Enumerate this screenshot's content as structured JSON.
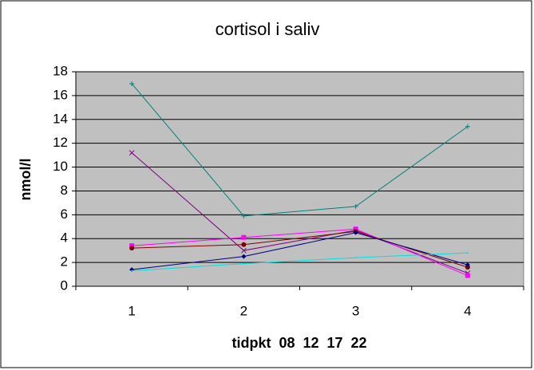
{
  "chart_data": {
    "type": "line",
    "title": "cortisol i saliv",
    "y_label": "nmol/l",
    "x_label": "tidpkt  08  12  17  22",
    "categories": [
      "1",
      "2",
      "3",
      "4"
    ],
    "series": [
      {
        "color": "#008080",
        "marker": "star",
        "values": [
          17.0,
          5.9,
          6.7,
          13.4
        ]
      },
      {
        "color": "#800080",
        "marker": "x",
        "values": [
          11.2,
          3.0,
          4.7,
          1.1
        ]
      },
      {
        "color": "#ff00ff",
        "marker": "square",
        "values": [
          3.4,
          4.1,
          4.8,
          0.9
        ]
      },
      {
        "color": "#800000",
        "marker": "circle",
        "values": [
          3.2,
          3.5,
          4.6,
          1.6
        ]
      },
      {
        "color": "#000080",
        "marker": "diamond",
        "values": [
          1.4,
          2.5,
          4.5,
          1.8
        ]
      },
      {
        "color": "#00e0e0",
        "marker": "none",
        "values": [
          1.3,
          1.9,
          2.4,
          2.8
        ]
      }
    ],
    "ylim": [
      0,
      18
    ],
    "yticks": [
      0,
      2,
      4,
      6,
      8,
      10,
      12,
      14,
      16,
      18
    ],
    "grid": true,
    "plot_background": "#c0c0c0"
  }
}
